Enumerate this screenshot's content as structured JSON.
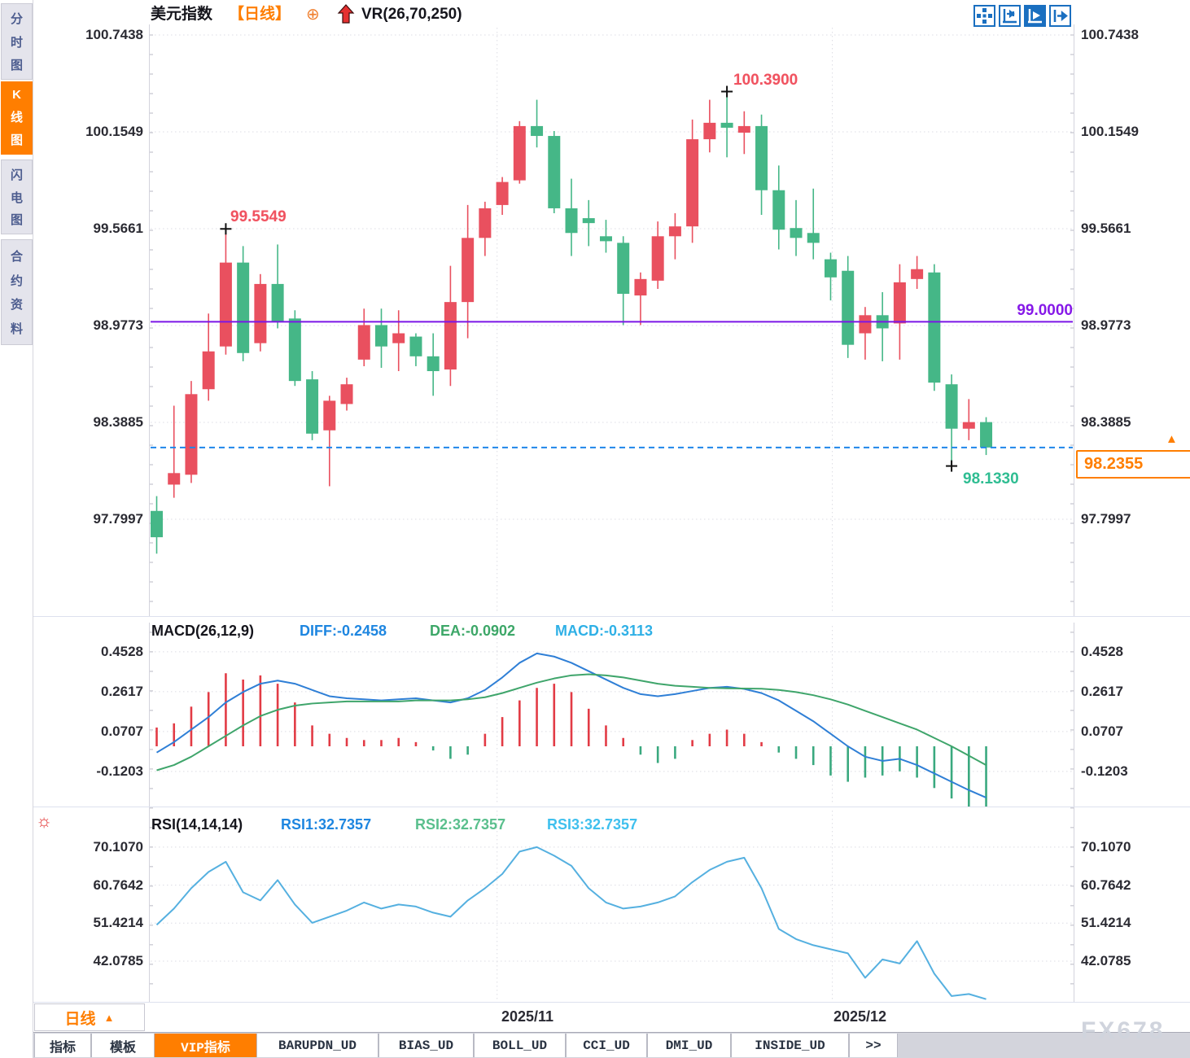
{
  "header": {
    "title": "美元指数",
    "period": "【日线】",
    "add_icon": "⊕",
    "indicator": "VR(26,70,250)"
  },
  "toolbar": {
    "icons": [
      "pan-crosshair-icon",
      "axis-fit-icon",
      "auto-scale-icon",
      "export-right-icon"
    ]
  },
  "sidebar": {
    "items": [
      {
        "label": "分时图",
        "active": false
      },
      {
        "label": "K线图",
        "active": true
      },
      {
        "label": "闪电图",
        "active": false
      },
      {
        "label": "合约资料",
        "active": false
      }
    ]
  },
  "price_panel": {
    "yaxis": [
      "100.7438",
      "100.1549",
      "99.5661",
      "98.9773",
      "98.3885",
      "97.7997"
    ],
    "annotations": {
      "swing_high_1": "99.5549",
      "swing_high_2": "100.3900",
      "swing_low": "98.1330",
      "support_line": "99.0000",
      "last_price": "98.2355",
      "tag_arrow": "▲"
    }
  },
  "macd_panel": {
    "title": "MACD(26,12,9)",
    "diff_label": "DIFF:-0.2458",
    "dea_label": "DEA:-0.0902",
    "macd_label": "MACD:-0.3113",
    "yaxis": [
      "0.4528",
      "0.2617",
      "0.0707",
      "-0.1203"
    ]
  },
  "rsi_panel": {
    "title": "RSI(14,14,14)",
    "rsi1_label": "RSI1:32.7357",
    "rsi2_label": "RSI2:32.7357",
    "rsi3_label": "RSI3:32.7357",
    "yaxis": [
      "70.1070",
      "60.7642",
      "51.4214",
      "42.0785"
    ]
  },
  "xaxis": {
    "period_button": "日线",
    "period_arrow": "▲",
    "labels": [
      "2025/11",
      "2025/12"
    ]
  },
  "bottom_tabs": [
    {
      "label": "指标",
      "active": false
    },
    {
      "label": "模板",
      "active": false
    },
    {
      "label": "VIP指标",
      "active": true
    },
    {
      "label": "BARUPDN_UD",
      "active": false
    },
    {
      "label": "BIAS_UD",
      "active": false
    },
    {
      "label": "BOLL_UD",
      "active": false
    },
    {
      "label": "CCI_UD",
      "active": false
    },
    {
      "label": "DMI_UD",
      "active": false
    },
    {
      "label": "INSIDE_UD",
      "active": false
    },
    {
      "label": ">>",
      "active": false
    }
  ],
  "watermark": "FX678",
  "colors": {
    "up": "#e9505f",
    "down": "#45b787",
    "hist_up": "#e23b45",
    "hist_down": "#3aa97f",
    "accent_orange": "#ff7e00",
    "support_purple": "#7b16e6",
    "alert_blue": "#1f86ea",
    "diff_blue": "#2f7fd6",
    "dea_green": "#3fa56b",
    "rsi_blue": "#55b0e0",
    "grid": "#dcdce4",
    "tick": "#b9b9c4",
    "border": "#d3d3dc"
  },
  "chart_data": [
    {
      "type": "candlestick",
      "title": "美元指数 日线 (US Dollar Index, daily)",
      "ylim": [
        97.7997,
        100.7438
      ],
      "yticks": [
        100.7438,
        100.1549,
        99.5661,
        98.9773,
        98.3885,
        97.7997
      ],
      "grid": true,
      "candles": [
        [
          97.85,
          97.94,
          97.59,
          97.69
        ],
        [
          98.01,
          98.49,
          97.93,
          98.08
        ],
        [
          98.07,
          98.64,
          98.02,
          98.56
        ],
        [
          98.59,
          99.05,
          98.52,
          98.82
        ],
        [
          98.85,
          99.5549,
          98.8,
          99.36
        ],
        [
          99.36,
          99.46,
          98.76,
          98.81
        ],
        [
          98.87,
          99.29,
          98.82,
          99.23
        ],
        [
          99.23,
          99.47,
          98.96,
          99.0
        ],
        [
          99.02,
          99.07,
          98.61,
          98.64
        ],
        [
          98.65,
          98.7,
          98.28,
          98.32
        ],
        [
          98.34,
          98.55,
          98.0,
          98.52
        ],
        [
          98.5,
          98.66,
          98.46,
          98.62
        ],
        [
          98.77,
          99.08,
          98.73,
          98.98
        ],
        [
          98.98,
          99.08,
          98.72,
          98.85
        ],
        [
          98.87,
          99.07,
          98.7,
          98.93
        ],
        [
          98.91,
          98.93,
          98.73,
          98.79
        ],
        [
          98.79,
          98.93,
          98.55,
          98.7
        ],
        [
          98.71,
          99.34,
          98.61,
          99.12
        ],
        [
          99.12,
          99.71,
          98.9,
          99.51
        ],
        [
          99.51,
          99.73,
          99.4,
          99.69
        ],
        [
          99.71,
          99.88,
          99.65,
          99.85
        ],
        [
          99.86,
          100.22,
          99.84,
          100.19
        ],
        [
          100.19,
          100.35,
          100.06,
          100.13
        ],
        [
          100.13,
          100.16,
          99.66,
          99.69
        ],
        [
          99.69,
          99.87,
          99.4,
          99.54
        ],
        [
          99.63,
          99.74,
          99.46,
          99.6
        ],
        [
          99.52,
          99.62,
          99.42,
          99.49
        ],
        [
          99.48,
          99.52,
          98.98,
          99.17
        ],
        [
          99.16,
          99.3,
          98.98,
          99.26
        ],
        [
          99.25,
          99.61,
          99.2,
          99.52
        ],
        [
          99.52,
          99.66,
          99.38,
          99.58
        ],
        [
          99.58,
          100.23,
          99.48,
          100.11
        ],
        [
          100.11,
          100.35,
          100.03,
          100.21
        ],
        [
          100.21,
          100.39,
          100.0,
          100.18
        ],
        [
          100.15,
          100.28,
          100.02,
          100.19
        ],
        [
          100.19,
          100.26,
          99.65,
          99.8
        ],
        [
          99.8,
          99.95,
          99.44,
          99.56
        ],
        [
          99.57,
          99.74,
          99.4,
          99.51
        ],
        [
          99.54,
          99.81,
          99.38,
          99.48
        ],
        [
          99.38,
          99.42,
          99.13,
          99.27
        ],
        [
          99.31,
          99.4,
          98.78,
          98.86
        ],
        [
          98.93,
          99.09,
          98.77,
          99.04
        ],
        [
          99.04,
          99.18,
          98.76,
          98.96
        ],
        [
          98.99,
          99.35,
          98.77,
          99.24
        ],
        [
          99.26,
          99.4,
          99.2,
          99.32
        ],
        [
          99.3,
          99.35,
          98.58,
          98.63
        ],
        [
          98.62,
          98.68,
          98.133,
          98.35
        ],
        [
          98.35,
          98.53,
          98.28,
          98.39
        ],
        [
          98.39,
          98.42,
          98.19,
          98.2355
        ]
      ],
      "hlines": [
        {
          "value": 99.0,
          "label": "99.0000",
          "style": "solid",
          "color_key": "support_purple"
        },
        {
          "value": 98.2355,
          "label": "98.2355",
          "style": "dashed",
          "color_key": "alert_blue"
        }
      ],
      "markers": [
        {
          "index": 4,
          "at": "high",
          "label": "99.5549"
        },
        {
          "index": 33,
          "at": "high",
          "label": "100.3900"
        },
        {
          "index": 46,
          "at": "low",
          "label": "98.1330"
        }
      ],
      "xticks": [
        {
          "pos": 19.7,
          "label": "2025/11"
        },
        {
          "pos": 39.1,
          "label": "2025/12"
        }
      ]
    },
    {
      "type": "bar",
      "title": "MACD(26,12,9)",
      "yticks": [
        0.4528,
        0.2617,
        0.0707,
        -0.1203
      ],
      "last": {
        "diff": -0.2458,
        "dea": -0.0902,
        "macd": -0.3113
      },
      "hist": [
        0.09,
        0.11,
        0.19,
        0.26,
        0.35,
        0.32,
        0.34,
        0.3,
        0.21,
        0.1,
        0.06,
        0.04,
        0.03,
        0.03,
        0.04,
        0.02,
        -0.02,
        -0.06,
        -0.04,
        0.06,
        0.14,
        0.22,
        0.28,
        0.3,
        0.26,
        0.18,
        0.1,
        0.04,
        -0.04,
        -0.08,
        -0.06,
        0.03,
        0.06,
        0.08,
        0.06,
        0.02,
        -0.03,
        -0.06,
        -0.09,
        -0.14,
        -0.17,
        -0.15,
        -0.14,
        -0.12,
        -0.15,
        -0.2,
        -0.25,
        -0.29,
        -0.3113
      ],
      "series": [
        {
          "name": "DIFF",
          "values": [
            -0.03,
            0.02,
            0.08,
            0.14,
            0.21,
            0.26,
            0.3,
            0.315,
            0.3,
            0.27,
            0.24,
            0.23,
            0.225,
            0.22,
            0.225,
            0.23,
            0.22,
            0.21,
            0.23,
            0.27,
            0.33,
            0.4,
            0.445,
            0.43,
            0.4,
            0.36,
            0.32,
            0.28,
            0.25,
            0.24,
            0.25,
            0.265,
            0.28,
            0.285,
            0.275,
            0.255,
            0.22,
            0.17,
            0.12,
            0.06,
            0.0,
            -0.05,
            -0.07,
            -0.06,
            -0.09,
            -0.13,
            -0.17,
            -0.21,
            -0.2458
          ]
        },
        {
          "name": "DEA",
          "values": [
            -0.115,
            -0.09,
            -0.05,
            0.0,
            0.05,
            0.1,
            0.145,
            0.175,
            0.195,
            0.205,
            0.21,
            0.215,
            0.215,
            0.215,
            0.215,
            0.22,
            0.22,
            0.22,
            0.225,
            0.235,
            0.255,
            0.28,
            0.305,
            0.325,
            0.34,
            0.345,
            0.34,
            0.33,
            0.315,
            0.3,
            0.29,
            0.285,
            0.28,
            0.278,
            0.277,
            0.276,
            0.27,
            0.26,
            0.245,
            0.225,
            0.2,
            0.17,
            0.14,
            0.11,
            0.08,
            0.04,
            0.0,
            -0.045,
            -0.0902
          ]
        }
      ]
    },
    {
      "type": "line",
      "title": "RSI(14,14,14)",
      "yticks": [
        70.107,
        60.7642,
        51.4214,
        42.0785
      ],
      "last": 32.7357,
      "rsi": [
        51,
        55,
        60,
        64,
        66.5,
        59,
        57,
        62,
        56,
        51.5,
        53,
        54.5,
        56.5,
        55,
        56,
        55.5,
        54,
        53,
        57,
        60,
        63.5,
        69,
        70.1,
        68,
        65.5,
        60,
        56.5,
        55,
        55.5,
        56.5,
        58,
        61.5,
        64.5,
        66.5,
        67.5,
        60,
        50,
        47.5,
        46,
        45,
        44,
        38,
        42.5,
        41.5,
        47,
        39,
        33.5,
        34,
        32.7357
      ]
    }
  ]
}
